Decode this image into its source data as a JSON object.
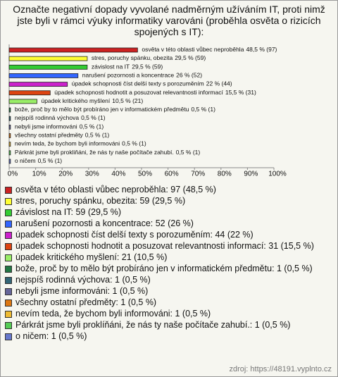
{
  "chart_data": {
    "type": "hbar",
    "title": "Označte negativní dopady vyvolané nadměrným užíváním IT, proti nimž jste byli v rámci výuky informatiky varováni (proběhla osvěta o rizicích spojených s IT):",
    "categories": [
      "osvěta v této oblasti vůbec neproběhla",
      "stres, poruchy spánku, obezita",
      "závislost na IT",
      "narušení pozornosti a koncentrace",
      "úpadek schopnosti číst delší texty s porozuměním",
      "úpadek schopnosti hodnotit a posuzovat relevantnosti informací",
      "úpadek kritického myšlení",
      "bože, proč by to mělo být probíráno jen v informatickém předmětu",
      "nejspíš rodinná výchova",
      "nebyli jsme informováni",
      "všechny ostatní předměty",
      "nevím teda, že bychom byli informováni",
      "Párkrát jsme byli prokliňáni, že nás ty naše počítače zahubí.",
      "o ničem"
    ],
    "values": [
      48.5,
      29.5,
      29.5,
      26,
      22,
      15.5,
      10.5,
      0.5,
      0.5,
      0.5,
      0.5,
      0.5,
      0.5,
      0.5
    ],
    "value_labels": [
      "48,5 % (97)",
      "29,5 % (59)",
      "29,5 % (59)",
      "26 % (52)",
      "22 % (44)",
      "15,5 % (31)",
      "10,5 % (21)",
      "0,5 % (1)",
      "0,5 % (1)",
      "0,5 % (1)",
      "0,5 % (1)",
      "0,5 % (1)",
      "0,5 % (1)",
      "0,5 % (1)"
    ],
    "colors": [
      "#cc2222",
      "#ffff33",
      "#33cc33",
      "#3366ff",
      "#cc22cc",
      "#dd4411",
      "#99ee66",
      "#227744",
      "#336677",
      "#666699",
      "#dd7711",
      "#eebb33",
      "#55cc55",
      "#6677cc"
    ],
    "legend": [
      "osvěta v této oblasti vůbec neproběhla: 97 (48,5 %)",
      "stres, poruchy spánku, obezita: 59 (29,5 %)",
      "závislost na IT: 59 (29,5 %)",
      "narušení pozornosti a koncentrace: 52 (26 %)",
      "úpadek schopnosti číst delší texty s porozuměním: 44 (22 %)",
      "úpadek schopnosti hodnotit a posuzovat relevantnosti informací: 31 (15,5 %)",
      "úpadek kritického myšlení: 21 (10,5 %)",
      "bože, proč by to mělo být probíráno jen v informatickém předmětu: 1 (0,5 %)",
      "nejspíš rodinná výchova: 1 (0,5 %)",
      "nebyli jsme informováni: 1 (0,5 %)",
      "všechny ostatní předměty: 1 (0,5 %)",
      "nevím teda, že bychom byli informováni: 1 (0,5 %)",
      "Párkrát jsme byli proklíňáni, že nás ty naše počítače zahubí.: 1 (0,5 %)",
      "o ničem: 1 (0,5 %)"
    ],
    "xlim": [
      0,
      100
    ],
    "xticks": [
      {
        "value": 0,
        "label": "0%"
      },
      {
        "value": 10,
        "label": "10%"
      },
      {
        "value": 20,
        "label": "20%"
      },
      {
        "value": 30,
        "label": "30%"
      },
      {
        "value": 40,
        "label": "40%"
      },
      {
        "value": 50,
        "label": "50%"
      },
      {
        "value": 60,
        "label": "60%"
      },
      {
        "value": 70,
        "label": "70%"
      },
      {
        "value": 80,
        "label": "80%"
      },
      {
        "value": 90,
        "label": "90%"
      },
      {
        "value": 100,
        "label": "100%"
      }
    ],
    "source": "zdroj: https://48191.vyplnto.cz"
  }
}
